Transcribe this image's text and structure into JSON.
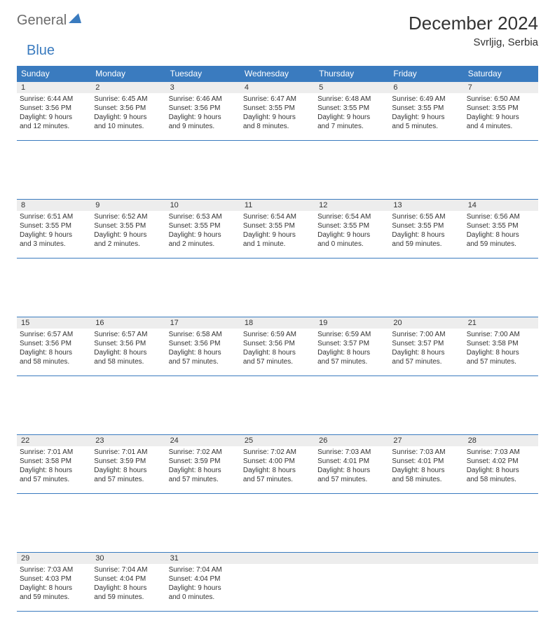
{
  "brand": {
    "part1": "General",
    "part2": "Blue"
  },
  "title": "December 2024",
  "location": "Svrljig, Serbia",
  "colors": {
    "header_bg": "#3a7bbf",
    "header_text": "#ffffff",
    "daynum_bg": "#ededed",
    "rule": "#3a7bbf",
    "body_text": "#333333",
    "logo_gray": "#6b6b6b",
    "logo_blue": "#3a7bbf",
    "page_bg": "#ffffff"
  },
  "weekdays": [
    "Sunday",
    "Monday",
    "Tuesday",
    "Wednesday",
    "Thursday",
    "Friday",
    "Saturday"
  ],
  "weeks": [
    [
      {
        "n": "1",
        "sr": "Sunrise: 6:44 AM",
        "ss": "Sunset: 3:56 PM",
        "d1": "Daylight: 9 hours",
        "d2": "and 12 minutes."
      },
      {
        "n": "2",
        "sr": "Sunrise: 6:45 AM",
        "ss": "Sunset: 3:56 PM",
        "d1": "Daylight: 9 hours",
        "d2": "and 10 minutes."
      },
      {
        "n": "3",
        "sr": "Sunrise: 6:46 AM",
        "ss": "Sunset: 3:56 PM",
        "d1": "Daylight: 9 hours",
        "d2": "and 9 minutes."
      },
      {
        "n": "4",
        "sr": "Sunrise: 6:47 AM",
        "ss": "Sunset: 3:55 PM",
        "d1": "Daylight: 9 hours",
        "d2": "and 8 minutes."
      },
      {
        "n": "5",
        "sr": "Sunrise: 6:48 AM",
        "ss": "Sunset: 3:55 PM",
        "d1": "Daylight: 9 hours",
        "d2": "and 7 minutes."
      },
      {
        "n": "6",
        "sr": "Sunrise: 6:49 AM",
        "ss": "Sunset: 3:55 PM",
        "d1": "Daylight: 9 hours",
        "d2": "and 5 minutes."
      },
      {
        "n": "7",
        "sr": "Sunrise: 6:50 AM",
        "ss": "Sunset: 3:55 PM",
        "d1": "Daylight: 9 hours",
        "d2": "and 4 minutes."
      }
    ],
    [
      {
        "n": "8",
        "sr": "Sunrise: 6:51 AM",
        "ss": "Sunset: 3:55 PM",
        "d1": "Daylight: 9 hours",
        "d2": "and 3 minutes."
      },
      {
        "n": "9",
        "sr": "Sunrise: 6:52 AM",
        "ss": "Sunset: 3:55 PM",
        "d1": "Daylight: 9 hours",
        "d2": "and 2 minutes."
      },
      {
        "n": "10",
        "sr": "Sunrise: 6:53 AM",
        "ss": "Sunset: 3:55 PM",
        "d1": "Daylight: 9 hours",
        "d2": "and 2 minutes."
      },
      {
        "n": "11",
        "sr": "Sunrise: 6:54 AM",
        "ss": "Sunset: 3:55 PM",
        "d1": "Daylight: 9 hours",
        "d2": "and 1 minute."
      },
      {
        "n": "12",
        "sr": "Sunrise: 6:54 AM",
        "ss": "Sunset: 3:55 PM",
        "d1": "Daylight: 9 hours",
        "d2": "and 0 minutes."
      },
      {
        "n": "13",
        "sr": "Sunrise: 6:55 AM",
        "ss": "Sunset: 3:55 PM",
        "d1": "Daylight: 8 hours",
        "d2": "and 59 minutes."
      },
      {
        "n": "14",
        "sr": "Sunrise: 6:56 AM",
        "ss": "Sunset: 3:55 PM",
        "d1": "Daylight: 8 hours",
        "d2": "and 59 minutes."
      }
    ],
    [
      {
        "n": "15",
        "sr": "Sunrise: 6:57 AM",
        "ss": "Sunset: 3:56 PM",
        "d1": "Daylight: 8 hours",
        "d2": "and 58 minutes."
      },
      {
        "n": "16",
        "sr": "Sunrise: 6:57 AM",
        "ss": "Sunset: 3:56 PM",
        "d1": "Daylight: 8 hours",
        "d2": "and 58 minutes."
      },
      {
        "n": "17",
        "sr": "Sunrise: 6:58 AM",
        "ss": "Sunset: 3:56 PM",
        "d1": "Daylight: 8 hours",
        "d2": "and 57 minutes."
      },
      {
        "n": "18",
        "sr": "Sunrise: 6:59 AM",
        "ss": "Sunset: 3:56 PM",
        "d1": "Daylight: 8 hours",
        "d2": "and 57 minutes."
      },
      {
        "n": "19",
        "sr": "Sunrise: 6:59 AM",
        "ss": "Sunset: 3:57 PM",
        "d1": "Daylight: 8 hours",
        "d2": "and 57 minutes."
      },
      {
        "n": "20",
        "sr": "Sunrise: 7:00 AM",
        "ss": "Sunset: 3:57 PM",
        "d1": "Daylight: 8 hours",
        "d2": "and 57 minutes."
      },
      {
        "n": "21",
        "sr": "Sunrise: 7:00 AM",
        "ss": "Sunset: 3:58 PM",
        "d1": "Daylight: 8 hours",
        "d2": "and 57 minutes."
      }
    ],
    [
      {
        "n": "22",
        "sr": "Sunrise: 7:01 AM",
        "ss": "Sunset: 3:58 PM",
        "d1": "Daylight: 8 hours",
        "d2": "and 57 minutes."
      },
      {
        "n": "23",
        "sr": "Sunrise: 7:01 AM",
        "ss": "Sunset: 3:59 PM",
        "d1": "Daylight: 8 hours",
        "d2": "and 57 minutes."
      },
      {
        "n": "24",
        "sr": "Sunrise: 7:02 AM",
        "ss": "Sunset: 3:59 PM",
        "d1": "Daylight: 8 hours",
        "d2": "and 57 minutes."
      },
      {
        "n": "25",
        "sr": "Sunrise: 7:02 AM",
        "ss": "Sunset: 4:00 PM",
        "d1": "Daylight: 8 hours",
        "d2": "and 57 minutes."
      },
      {
        "n": "26",
        "sr": "Sunrise: 7:03 AM",
        "ss": "Sunset: 4:01 PM",
        "d1": "Daylight: 8 hours",
        "d2": "and 57 minutes."
      },
      {
        "n": "27",
        "sr": "Sunrise: 7:03 AM",
        "ss": "Sunset: 4:01 PM",
        "d1": "Daylight: 8 hours",
        "d2": "and 58 minutes."
      },
      {
        "n": "28",
        "sr": "Sunrise: 7:03 AM",
        "ss": "Sunset: 4:02 PM",
        "d1": "Daylight: 8 hours",
        "d2": "and 58 minutes."
      }
    ],
    [
      {
        "n": "29",
        "sr": "Sunrise: 7:03 AM",
        "ss": "Sunset: 4:03 PM",
        "d1": "Daylight: 8 hours",
        "d2": "and 59 minutes."
      },
      {
        "n": "30",
        "sr": "Sunrise: 7:04 AM",
        "ss": "Sunset: 4:04 PM",
        "d1": "Daylight: 8 hours",
        "d2": "and 59 minutes."
      },
      {
        "n": "31",
        "sr": "Sunrise: 7:04 AM",
        "ss": "Sunset: 4:04 PM",
        "d1": "Daylight: 9 hours",
        "d2": "and 0 minutes."
      },
      {
        "empty": true
      },
      {
        "empty": true
      },
      {
        "empty": true
      },
      {
        "empty": true
      }
    ]
  ]
}
